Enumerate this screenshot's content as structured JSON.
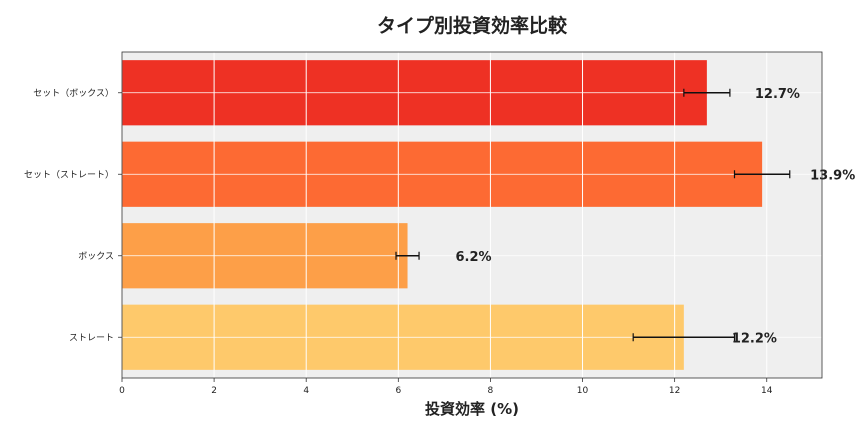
{
  "chart_data": {
    "type": "bar",
    "orientation": "horizontal",
    "title": "タイプ別投資効率比較",
    "xlabel": "投資効率 (%)",
    "ylabel": "",
    "xlim": [
      0,
      15.2
    ],
    "xticks": [
      0,
      2,
      4,
      6,
      8,
      10,
      12,
      14
    ],
    "grid": true,
    "categories": [
      "セット（ボックス）",
      "セット（ストレート）",
      "ボックス",
      "ストレート"
    ],
    "values": [
      12.7,
      13.9,
      6.2,
      12.2
    ],
    "errors": [
      0.5,
      0.6,
      0.25,
      1.1
    ],
    "labels": [
      "12.7%",
      "13.9%",
      "6.2%",
      "12.2%"
    ],
    "colors": [
      "#ee3124",
      "#fd6a33",
      "#fd9f48",
      "#fec96b"
    ],
    "background": "#efefef"
  }
}
